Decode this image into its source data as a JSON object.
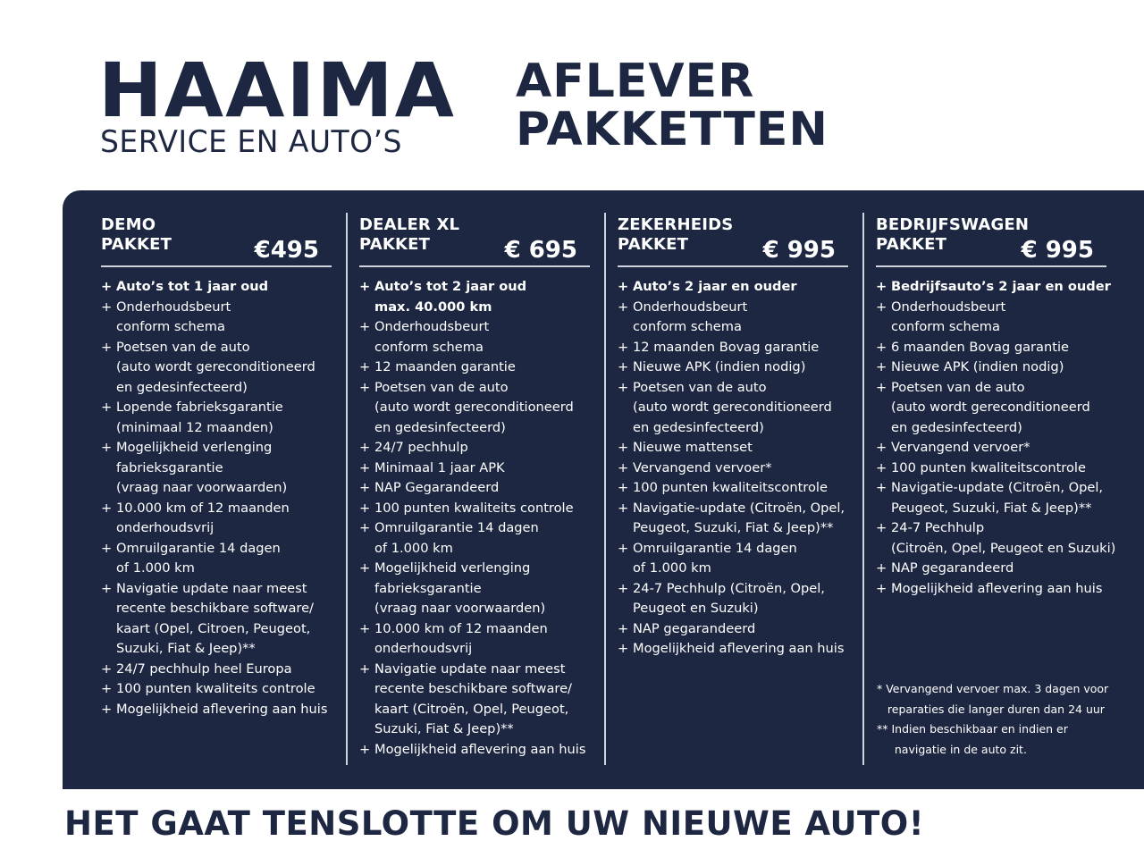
{
  "logo": {
    "name": "HAAIMA",
    "tagline": "SERVICE EN AUTO’S"
  },
  "title": {
    "line1": "AFLEVER",
    "line2": "PAKKETTEN"
  },
  "colors": {
    "navy": "#1d2742",
    "text": "#ffffff"
  },
  "packages": [
    {
      "name1": "DEMO",
      "name2": "PAKKET",
      "price": "€495",
      "items": [
        [
          "Auto’s tot 1 jaar oud"
        ],
        [
          "Onderhoudsbeurt",
          "conform schema"
        ],
        [
          "Poetsen van de auto",
          "(auto wordt gereconditioneerd",
          "en gedesinfecteerd)"
        ],
        [
          "Lopende fabrieksgarantie",
          "(minimaal 12 maanden)"
        ],
        [
          "Mogelijkheid verlenging",
          "fabrieksgarantie",
          "(vraag naar voorwaarden)"
        ],
        [
          "10.000 km of 12 maanden",
          "onderhoudsvrij"
        ],
        [
          "Omruilgarantie 14 dagen",
          "of 1.000 km"
        ],
        [
          "Navigatie update naar meest",
          "recente beschikbare software/",
          "kaart (Opel, Citroen,  Peugeot,",
          "Suzuki, Fiat & Jeep)**"
        ],
        [
          "24/7 pechhulp heel Europa"
        ],
        [
          "100 punten kwaliteits controle"
        ],
        [
          "Mogelijkheid aflevering aan huis"
        ]
      ]
    },
    {
      "name1": "DEALER XL",
      "name2": "PAKKET",
      "price": "€ 695",
      "items": [
        [
          "Auto’s tot 2 jaar oud",
          "max. 40.000 km"
        ],
        [
          "Onderhoudsbeurt",
          "conform schema"
        ],
        [
          "12 maanden garantie"
        ],
        [
          "Poetsen van de auto",
          "(auto wordt gereconditioneerd",
          "en gedesinfecteerd)"
        ],
        [
          "24/7 pechhulp"
        ],
        [
          "Minimaal 1 jaar APK"
        ],
        [
          "NAP Gegarandeerd"
        ],
        [
          "100 punten kwaliteits controle"
        ],
        [
          "Omruilgarantie 14 dagen",
          "of 1.000 km"
        ],
        [
          "Mogelijkheid verlenging",
          "fabrieksgarantie",
          "(vraag naar voorwaarden)"
        ],
        [
          "10.000 km of 12 maanden",
          "onderhoudsvrij"
        ],
        [
          "Navigatie update naar meest",
          "recente beschikbare software/",
          "kaart (Citroën, Opel, Peugeot,",
          "Suzuki, Fiat & Jeep)**"
        ],
        [
          "Mogelijkheid aflevering aan huis"
        ]
      ]
    },
    {
      "name1": "ZEKERHEIDS",
      "name2": "PAKKET",
      "price": "€ 995",
      "items": [
        [
          "Auto’s 2 jaar en ouder"
        ],
        [
          "Onderhoudsbeurt",
          "conform schema"
        ],
        [
          "12 maanden Bovag garantie"
        ],
        [
          "Nieuwe APK (indien nodig)"
        ],
        [
          "Poetsen van de auto",
          "(auto wordt gereconditioneerd",
          "en gedesinfecteerd)"
        ],
        [
          "Nieuwe mattenset"
        ],
        [
          "Vervangend vervoer*"
        ],
        [
          "100 punten kwaliteitscontrole"
        ],
        [
          "Navigatie-update (Citroën, Opel,",
          "Peugeot, Suzuki, Fiat & Jeep)**"
        ],
        [
          "Omruilgarantie 14 dagen",
          "of 1.000 km"
        ],
        [
          "24-7 Pechhulp (Citroën, Opel,",
          "Peugeot en Suzuki)"
        ],
        [
          "NAP gegarandeerd"
        ],
        [
          "Mogelijkheid aflevering aan huis"
        ]
      ]
    },
    {
      "name1": "BEDRIJFSWAGEN",
      "name2": "PAKKET",
      "price": "€ 995",
      "items": [
        [
          "Bedrijfsauto’s 2 jaar en ouder"
        ],
        [
          "Onderhoudsbeurt",
          "conform schema"
        ],
        [
          "6 maanden Bovag garantie"
        ],
        [
          "Nieuwe APK (indien nodig)"
        ],
        [
          "Poetsen van de auto",
          "(auto wordt gereconditioneerd",
          "en gedesinfecteerd)"
        ],
        [
          "Vervangend vervoer*"
        ],
        [
          "100 punten kwaliteitscontrole"
        ],
        [
          "Navigatie-update (Citroën, Opel,",
          "Peugeot, Suzuki, Fiat & Jeep)**"
        ],
        [
          "24-7 Pechhulp",
          "(Citroën, Opel, Peugeot en Suzuki)"
        ],
        [
          "NAP gegarandeerd"
        ],
        [
          "Mogelijkheid aflevering aan huis"
        ]
      ]
    }
  ],
  "notes": [
    "* Vervangend vervoer max. 3 dagen voor",
    "   reparaties die langer duren dan 24 uur",
    "** Indien beschikbaar en indien er",
    "     navigatie in de auto zit."
  ],
  "footer": "HET GAAT TENSLOTTE OM UW NIEUWE AUTO!"
}
